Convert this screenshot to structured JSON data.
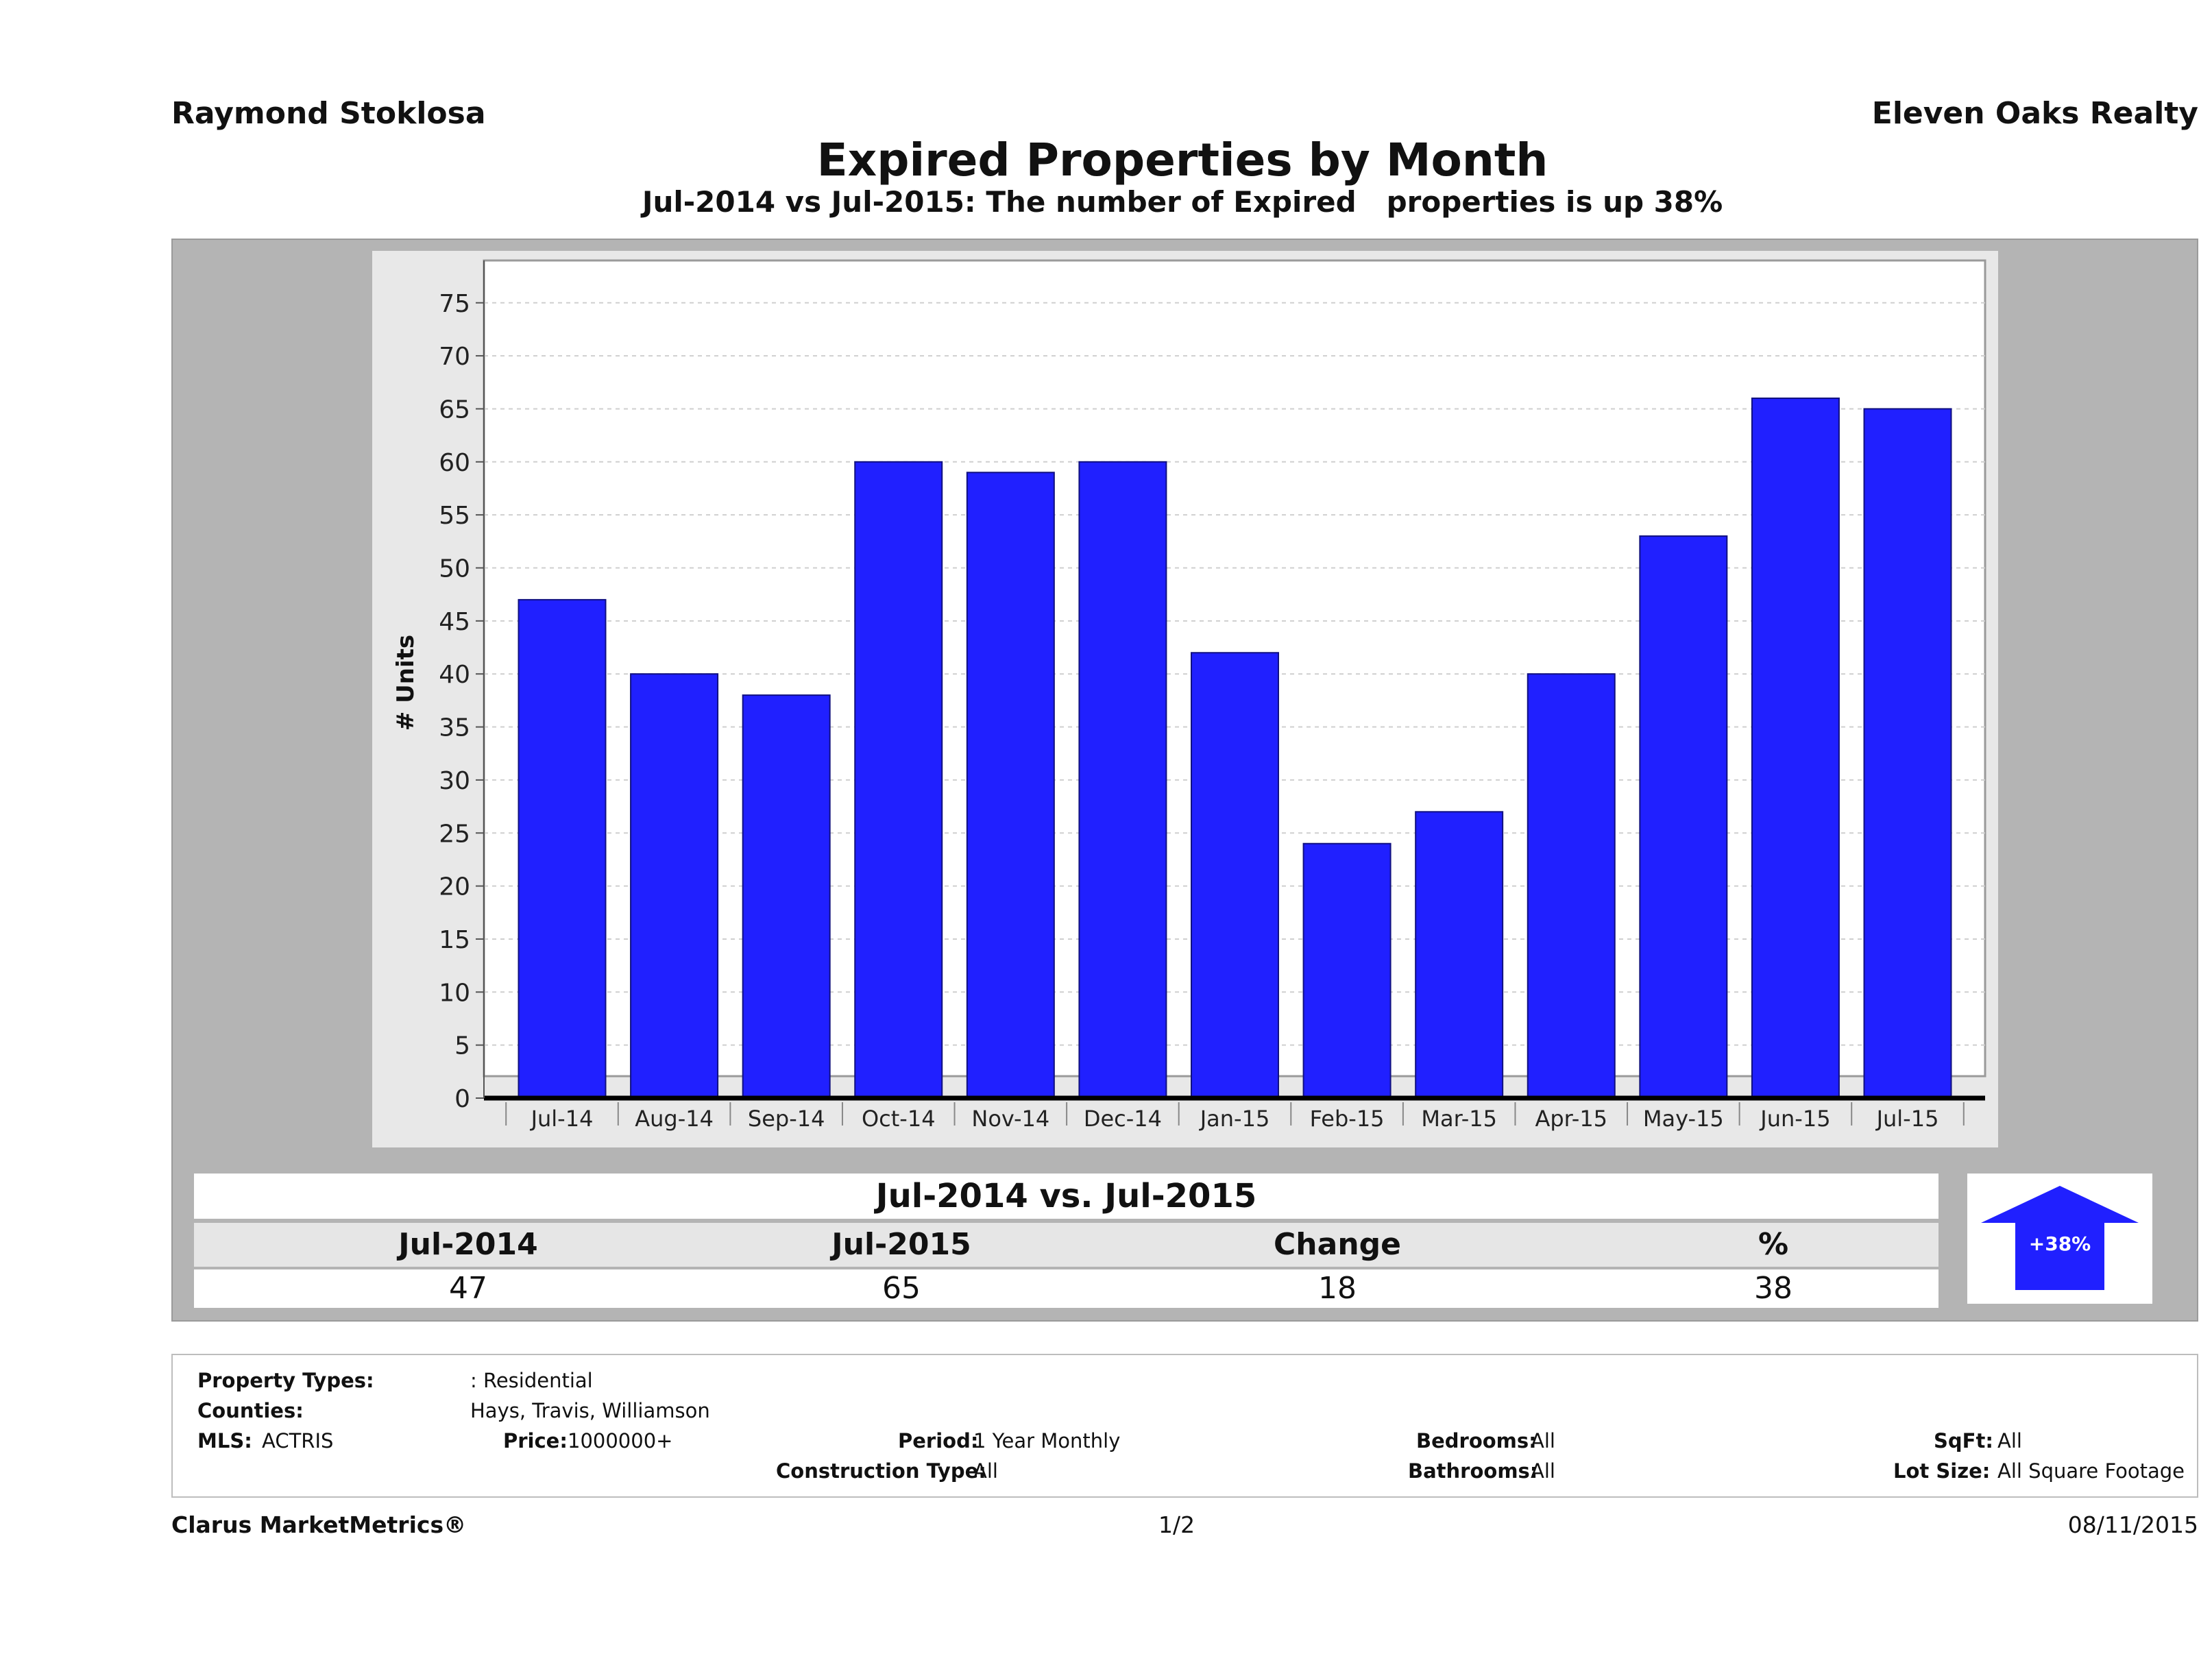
{
  "header": {
    "agent": "Raymond Stoklosa",
    "brokerage": "Eleven Oaks Realty",
    "title": "Expired Properties by Month",
    "subtitle": "Jul-2014 vs Jul-2015: The number of Expired   properties is up 38%"
  },
  "chart_data": {
    "type": "bar",
    "ylabel": "# Units",
    "xlabel": "",
    "ylim": [
      0,
      75
    ],
    "yticks": [
      0,
      5,
      10,
      15,
      20,
      25,
      30,
      35,
      40,
      45,
      50,
      55,
      60,
      65,
      70,
      75
    ],
    "grid": true,
    "categories": [
      "Jul-14",
      "Aug-14",
      "Sep-14",
      "Oct-14",
      "Nov-14",
      "Dec-14",
      "Jan-15",
      "Feb-15",
      "Mar-15",
      "Apr-15",
      "May-15",
      "Jun-15",
      "Jul-15"
    ],
    "values": [
      47,
      40,
      38,
      60,
      59,
      60,
      42,
      24,
      27,
      40,
      53,
      66,
      65
    ],
    "bar_color": "#2020ff"
  },
  "comparison": {
    "title": "Jul-2014 vs. Jul-2015",
    "headers": [
      "Jul-2014",
      "Jul-2015",
      "Change",
      "%"
    ],
    "values": [
      "47",
      "65",
      "18",
      "38"
    ],
    "badge": "+38%",
    "badge_icon": "up-arrow-icon",
    "badge_color": "#2020ff"
  },
  "criteria": {
    "property_types_label": "Property Types:",
    "property_types_value": ": Residential",
    "counties_label": "Counties:",
    "counties_value": "Hays, Travis, Williamson",
    "mls_label": "MLS:",
    "mls_value": "ACTRIS",
    "price_label": "Price:",
    "price_value": "1000000+",
    "period_label": "Period:",
    "period_value": "1 Year Monthly",
    "construction_label": "Construction Type:",
    "construction_value": "All",
    "bedrooms_label": "Bedrooms:",
    "bedrooms_value": "All",
    "bathrooms_label": "Bathrooms:",
    "bathrooms_value": "All",
    "sqft_label": "SqFt:",
    "sqft_value": "All",
    "lotsize_label": "Lot Size:",
    "lotsize_value": "All Square Footage"
  },
  "footer": {
    "brand": "Clarus MarketMetrics®",
    "page": "1/2",
    "date": "08/11/2015"
  }
}
